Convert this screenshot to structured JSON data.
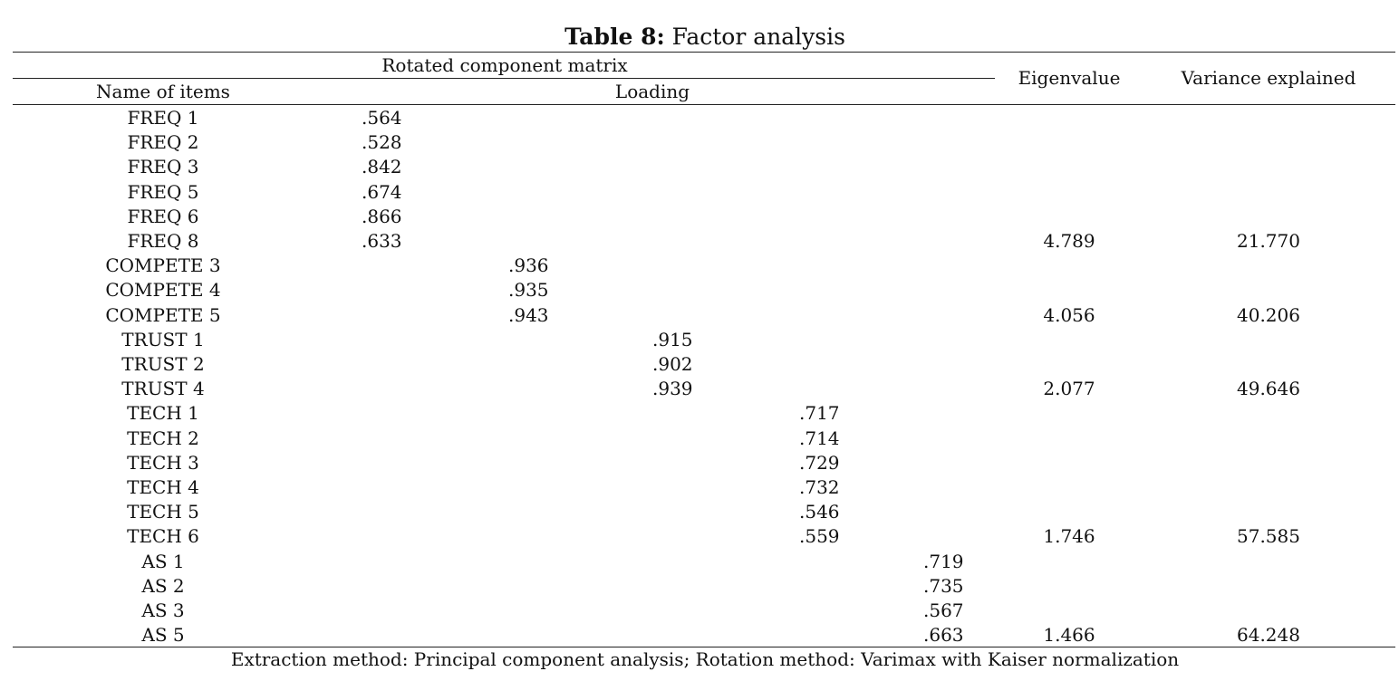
{
  "table": {
    "title_label": "Table 8:",
    "title_text": " Factor analysis",
    "header": {
      "rotated_matrix": "Rotated component matrix",
      "name_of_items": "Name of items",
      "loading": "Loading",
      "eigenvalue": "Eigenvalue",
      "variance_explained": "Variance explained"
    },
    "rows": [
      {
        "item": "FREQ 1",
        "col": 0,
        "loading": ".564",
        "eigenvalue": "",
        "variance": ""
      },
      {
        "item": "FREQ 2",
        "col": 0,
        "loading": ".528",
        "eigenvalue": "",
        "variance": ""
      },
      {
        "item": "FREQ 3",
        "col": 0,
        "loading": ".842",
        "eigenvalue": "",
        "variance": ""
      },
      {
        "item": "FREQ 5",
        "col": 0,
        "loading": ".674",
        "eigenvalue": "",
        "variance": ""
      },
      {
        "item": "FREQ 6",
        "col": 0,
        "loading": ".866",
        "eigenvalue": "",
        "variance": ""
      },
      {
        "item": "FREQ 8",
        "col": 0,
        "loading": ".633",
        "eigenvalue": "4.789",
        "variance": "21.770"
      },
      {
        "item": "COMPETE 3",
        "col": 1,
        "loading": ".936",
        "eigenvalue": "",
        "variance": ""
      },
      {
        "item": "COMPETE 4",
        "col": 1,
        "loading": ".935",
        "eigenvalue": "",
        "variance": ""
      },
      {
        "item": "COMPETE 5",
        "col": 1,
        "loading": ".943",
        "eigenvalue": "4.056",
        "variance": "40.206"
      },
      {
        "item": "TRUST 1",
        "col": 2,
        "loading": ".915",
        "eigenvalue": "",
        "variance": ""
      },
      {
        "item": "TRUST 2",
        "col": 2,
        "loading": ".902",
        "eigenvalue": "",
        "variance": ""
      },
      {
        "item": "TRUST 4",
        "col": 2,
        "loading": ".939",
        "eigenvalue": "2.077",
        "variance": "49.646"
      },
      {
        "item": "TECH 1",
        "col": 3,
        "loading": ".717",
        "eigenvalue": "",
        "variance": ""
      },
      {
        "item": "TECH 2",
        "col": 3,
        "loading": ".714",
        "eigenvalue": "",
        "variance": ""
      },
      {
        "item": "TECH 3",
        "col": 3,
        "loading": ".729",
        "eigenvalue": "",
        "variance": ""
      },
      {
        "item": "TECH 4",
        "col": 3,
        "loading": ".732",
        "eigenvalue": "",
        "variance": ""
      },
      {
        "item": "TECH 5",
        "col": 3,
        "loading": ".546",
        "eigenvalue": "",
        "variance": ""
      },
      {
        "item": "TECH 6",
        "col": 3,
        "loading": ".559",
        "eigenvalue": "1.746",
        "variance": "57.585"
      },
      {
        "item": "AS 1",
        "col": 4,
        "loading": ".719",
        "eigenvalue": "",
        "variance": ""
      },
      {
        "item": "AS 2",
        "col": 4,
        "loading": ".735",
        "eigenvalue": "",
        "variance": ""
      },
      {
        "item": "AS 3",
        "col": 4,
        "loading": ".567",
        "eigenvalue": "",
        "variance": ""
      },
      {
        "item": "AS 5",
        "col": 4,
        "loading": ".663",
        "eigenvalue": "1.466",
        "variance": "64.248"
      }
    ],
    "footnote": "Extraction method: Principal component analysis; Rotation method: Varimax with Kaiser normalization"
  }
}
